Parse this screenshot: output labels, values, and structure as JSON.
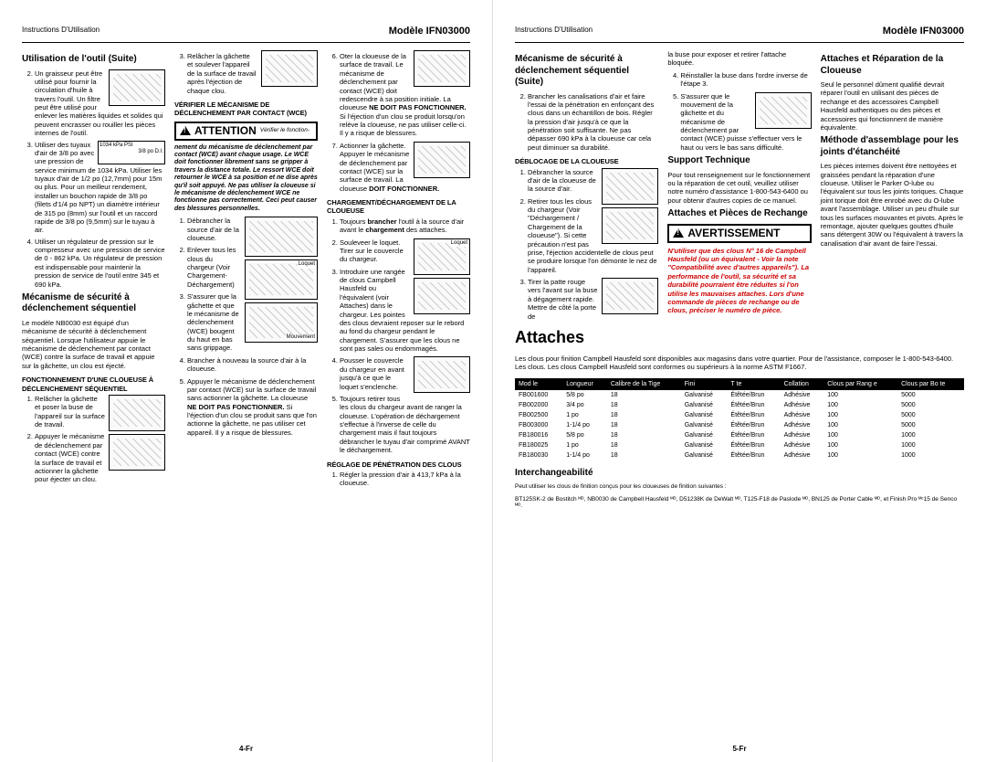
{
  "header": {
    "left": "Instructions D'Utilisation",
    "model": "Modèle IFN03000"
  },
  "footer": {
    "left": "4-Fr",
    "right": "5-Fr"
  },
  "p4": {
    "c1": {
      "h1": "Utilisation de l'outil (Suite)",
      "li2": "Un graisseur peut être utilisé pour fournir la circulation d'huile à travers l'outil. Un filtre peut être utilisé pour enlever les matières liquides et solides qui peuvent encrasser ou rouiller les pièces internes de l'outil.",
      "li3": "Utiliser des tuyaux d'air de 3/8 po avec une pression de service minimum de 1034 kPa. Utiliser les tuyaux d'air de 1/2 po (12,7mm) pour 15m ou plus. Pour un meilleur rendement, installer un bouchon rapide de 3/8 po (filets d'1/4 po NPT) un diamètre intérieur de 315 po (8mm) sur l'outil et un raccord rapide de 3/8 po (9,5mm) sur le tuyau à air.",
      "li4": "Utiliser un régulateur de pression sur le compresseur avec une pression de service de 0 - 862 kPa. Un régulateur de pression est indispensable pour maintenir la pression de service de l'outil entre 345 et 690 kPa.",
      "h1b": "Mécanisme de sécurité à déclenchement séquentiel",
      "p1": "Le modèle NB0030 est équipé d'un mécanisme de sécurité à déclenchement séquentiel. Lorsque l'utilisateur appuie le mécanisme de déclenchement par contact (WCE) contre la surface de travail et appuie sur la gâchette, un clou est éjecté.",
      "h2": "FONCTIONNEMENT D'UNE CLOUEUSE À DÉCLENCHEMENT SÉQUENTIEL",
      "s1": "Relâcher la gâchette et poser la buse de l'appareil sur la surface de travail.",
      "s2": "Appuyer le mécanisme de déclenchement par contact (WCE) contre la surface de travail et actionner la gâchette pour éjecter un clou.",
      "gauge": "1034 kPa PSI",
      "gauge2": "3/8 po D.I."
    },
    "c2": {
      "li3": "Relâcher la gâchette et soulever l'appareil de la surface de travail après l'éjection de chaque clou.",
      "h2v": "VÉRIFIER LE MÉCANISME DE DÉCLENCHEMENT PAR CONTACT (WCE)",
      "attn": "ATTENTION",
      "attn_sm": "Vérifier le fonction-",
      "warn": "nement du mécanisme de déclenchement par contact (WCE) avant chaque usage. Le WCE doit fonctionner librement sans se gripper à travers la distance totale. Le ressort WCE doit retourner le WCE à sa position et ne dise après qu'il soit appuyé. Ne pas utiliser la cloueuse si le mécanisme de déclenchement WCE ne fonctionne pas correctement. Ceci peut causer des blessures personnelles.",
      "d1": "Débrancher la source d'air de la cloueuse.",
      "d2": "Enlever tous les clous du chargeur (Voir Chargement-Déchargement)",
      "d3": "S'assurer que la gâchette et que le mécanisme de déclenchement (WCE) bougent du haut en bas sans grippage.",
      "d4": "Brancher à nouveau la source d'air à la cloueuse.",
      "d5": "Appuyer le mécanisme de déclenchement par contact (WCE) sur la surface de travail sans actionner la gâchette. La cloueuse",
      "nf": "NE DOIT PAS FONCTIONNER.",
      "d5b": " Si l'éjection d'un clou se produit sans que l'on actionne la gâchette, ne pas utiliser cet appareil. Il y a risque de blessures.",
      "lbl_loquet": "Loquet",
      "lbl_mouve": "Mouvement"
    },
    "c3": {
      "li6": "Oter la cloueuse de la surface de travail. Le mécanisme de déclenchement par contact (WCE) doit redescendre à sa position initiale. La cloueuse ",
      "nf2": "NE DOIT PAS FONCTIONNER.",
      "li6b": " Si l'éjection d'un clou se produit lorsqu'on relève la cloueuse, ne pas utiliser celle-ci. Il y a risque de blessures.",
      "li7": "Actionner la gâchette. Appuyer le mécanisme de déclenchement par contact (WCE) sur la surface de travail. La cloueuse ",
      "df": "DOIT FONCTIONNER.",
      "h2c": "CHARGEMENT/DÉCHARGEMENT DE LA CLOUEUSE",
      "c1": "Toujours ",
      "c1b": "brancher",
      "c1c": " l'outil à la source d'air avant le ",
      "c1d": "chargement",
      "c1e": " des attaches.",
      "c2l": "Souleveer le loquet. Tirer sur le couvercle du chargeur.",
      "c3l": "Introduire une rangée de clous Campbell Hausfeld ou l'équivalent (voir Attaches) dans le chargeur. Les pointes des clous devraient reposer sur le rebord au fond du chargeur pendant le chargement. S'assurer que les clous ne sont pas sales ou endommagés.",
      "c4l": "Pousser le couvercle du chargeur en avant jusqu'à ce que le loquet s'enclenche.",
      "c5l": "Toujours retirer tous les clous du chargeur avant de ranger la cloueuse. L'opération de déchargement s'effectue à l'inverse de celle du chargement mais il faut toujours débrancher le tuyau d'air comprimé AVANT le déchargement.",
      "h2r": "RÉGLAGE DE PÉNÉTRATION DES CLOUS",
      "r1": "Régler la pression d'air à 413,7 kPa à la cloueuse.",
      "lbl_loquet": "Loquet"
    }
  },
  "p5": {
    "c1": {
      "h1": "Mécanisme de sécurité à déclenchement séquentiel (Suite)",
      "li2": "Brancher les canalisations d'air et faire l'essai de la pénétration en enfonçant des clous dans un échantillon de bois. Régler la pression d'air jusqu'à ce que la pénétration soit suffisante. Ne pas dépasser 690 kPa à la cloueuse car cela peut diminuer sa durabilité.",
      "h2d": "DÉBLOCAGE DE LA CLOUEUSE",
      "d1": "Débrancher la source d'air de la cloueuse de la source d'air.",
      "d2": "Retirer tous les clous du chargeur (Voir \"Déchargement / Chargement de la cloueuse\"). Si cette précaution n'est pas prise, l'éjection accidentelle de clous peut se produire lorsque l'on démonte le nez de l'appareil.",
      "d3": "Tirer la patte rouge vers l'avant sur la buse à dégagement rapide. Mettre de côté la porte de"
    },
    "c2": {
      "p1": "la buse pour exposer et retirer l'attache bloquée.",
      "li4": "Réinstaller la buse dans l'ordre inverse de l'étape 3.",
      "li5": "S'assurer que le mouvement de la gâchette et du mécanisme de déclenchement par contact (WCE) puisse s'effectuer vers le haut ou vers le bas sans difficulté.",
      "h1s": "Support Technique",
      "ps": "Pour tout renseignement sur le fonctionnement ou la réparation de cet outil, veuillez utiliser notre numéro d'assistance 1-800-543-6400 ou pour obtenir d'autres copies de ce manuel.",
      "h1a": "Attaches et Pièces de Rechange",
      "avert": "AVERTISSEMENT",
      "red": "N'utiliser que des clous N° 16 de Campbell Hausfeld (ou un équivalent - Voir la note \"Compatibilité avec d'autres appareils\"). La performance de l'outil, sa sécurité et sa durabilité pourraient être réduites si l'on utilise les mauvaises attaches. Lors d'une commande de pièces de rechange ou de clous, préciser le numéro de pièce."
    },
    "c3": {
      "h1r": "Attaches et Réparation de la Cloueuse",
      "pr": "Seul le personnel dûment qualifié devrait réparer l'outil en utilisant des pièces de rechange et des accessoires Campbell Hausfeld authentiques ou des pièces et accessoires qui fonctionnent de manière équivalente.",
      "h1m": "Méthode d'assemblage pour les joints d'étanchéité",
      "pm": "Les pièces internes doivent être nettoyées et graissées pendant la réparation d'une cloueuse. Utiliser le Parker O-lube ou l'équivalent sur tous les joints toriques. Chaque joint torique doit être enrobé avec du O-lube avant l'assemblage. Utiliser un peu d'huile sur tous les surfaces mouvantes et pivots. Après le remontage, ajouter quelques gouttes d'huile sans détergent 30W ou l'équivalent à travers la canalisation d'air avant de faire l'essai."
    },
    "attaches": {
      "h": "Attaches",
      "intro": "Les clous pour finition Campbell Hausfeld sont disponibles aux magasins dans votre quartier. Pour de l'assistance, composer le 1-800-543-6400. Les clous. Les clous Campbell Hausfeld sont conformes ou supérieurs à la norme ASTM F1667.",
      "head": [
        "Mod le",
        "Longueur",
        "Calibre de la Tige",
        "Fini",
        "T te",
        "Collation",
        "Clous par Rang e",
        "Clous par Bo te"
      ],
      "rows": [
        [
          "FB001600",
          "5/8 po",
          "18",
          "Galvanisé",
          "Étêtée/Brun",
          "Adhésive",
          "100",
          "5000"
        ],
        [
          "FB002000",
          "3/4 po",
          "18",
          "Galvanisé",
          "Étêtée/Brun",
          "Adhésive",
          "100",
          "5000"
        ],
        [
          "FB002500",
          "1 po",
          "18",
          "Galvanisé",
          "Étêtée/Brun",
          "Adhésive",
          "100",
          "5000"
        ],
        [
          "FB003000",
          "1-1/4 po",
          "18",
          "Galvanisé",
          "Étêtée/Brun",
          "Adhésive",
          "100",
          "5000"
        ],
        [
          "FB180016",
          "5/8 po",
          "18",
          "Galvanisé",
          "Étêtée/Brun",
          "Adhésive",
          "100",
          "1000"
        ],
        [
          "FB180025",
          "1 po",
          "18",
          "Galvanisé",
          "Étêtée/Brun",
          "Adhésive",
          "100",
          "1000"
        ],
        [
          "FB180030",
          "1-1/4 po",
          "18",
          "Galvanisé",
          "Étêtée/Brun",
          "Adhésive",
          "100",
          "1000"
        ]
      ],
      "h2i": "Interchangeabilité",
      "pi": "Peut utiliser les clous de finition conçus pour les cloueuses de finition suivantes :",
      "pi2": "BT125SK-2 de Bostitch ᴹᴰ, NB0030 de Campbell Hausfeld ᴹᴰ, D51238K de DeWalt ᴹᴰ, T125-F18 de Paslode ᴹᴰ, BN125 de Porter Cable ᴹᴰ, et Finish Pro ᴹᶜ15 de Senco ᴹᴰ."
    }
  }
}
